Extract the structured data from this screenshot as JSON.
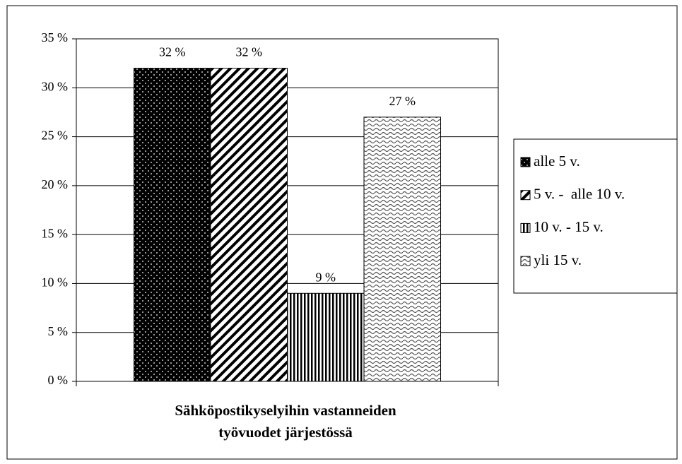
{
  "chart_data": {
    "type": "bar",
    "categories": [
      null
    ],
    "series": [
      {
        "name": "alle 5 v.",
        "pattern": "dots",
        "color": "#000000",
        "values": [
          32
        ],
        "value_labels": [
          "32 %"
        ]
      },
      {
        "name": "5 v. -  alle 10 v.",
        "pattern": "diagonal",
        "color": "#000000",
        "values": [
          32
        ],
        "value_labels": [
          "32 %"
        ]
      },
      {
        "name": "10 v. - 15 v.",
        "pattern": "vertical",
        "color": "#000000",
        "values": [
          9
        ],
        "value_labels": [
          "9 %"
        ]
      },
      {
        "name": "yli 15 v.",
        "pattern": "waves",
        "color": "#000000",
        "values": [
          27
        ],
        "value_labels": [
          "27 %"
        ]
      }
    ],
    "x_label": [
      "Sähköpostikyselyihin vastanneiden",
      "työvuodet järjestössä"
    ],
    "ylim": [
      0,
      35
    ],
    "yticks": [
      {
        "value": 0,
        "label": "0 %"
      },
      {
        "value": 5,
        "label": "5 %"
      },
      {
        "value": 10,
        "label": "10 %"
      },
      {
        "value": 15,
        "label": "15 %"
      },
      {
        "value": 20,
        "label": "20 %"
      },
      {
        "value": 25,
        "label": "25 %"
      },
      {
        "value": 30,
        "label": "30 %"
      },
      {
        "value": 35,
        "label": "35 %"
      }
    ],
    "grid": true,
    "legend": "right"
  }
}
